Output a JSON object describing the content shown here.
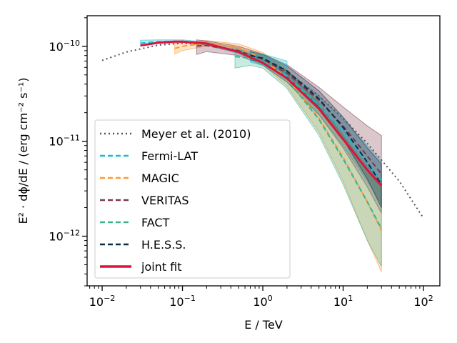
{
  "chart_data": {
    "type": "line",
    "title": "",
    "xlabel": "E / TeV",
    "ylabel": "E² · dϕ/dE / (erg cm⁻² s⁻¹)",
    "xscale": "log",
    "yscale": "log",
    "xlim": [
      0.0065,
      160
    ],
    "ylim": [
      3e-13,
      2.1e-10
    ],
    "x_ticks": [
      {
        "value": 0.01,
        "label": "10",
        "exp": "−2"
      },
      {
        "value": 0.1,
        "label": "10",
        "exp": "−1"
      },
      {
        "value": 1,
        "label": "10",
        "exp": "0"
      },
      {
        "value": 10,
        "label": "10",
        "exp": "1"
      },
      {
        "value": 100,
        "label": "10",
        "exp": "2"
      }
    ],
    "y_ticks": [
      {
        "value": 1e-12,
        "label": "10",
        "exp": "−12"
      },
      {
        "value": 1e-11,
        "label": "10",
        "exp": "−11"
      },
      {
        "value": 1e-10,
        "label": "10",
        "exp": "−10"
      }
    ],
    "grid": false,
    "legend_position": "lower-left",
    "series": [
      {
        "name": "Meyer et al. (2010)",
        "style": "dotted",
        "color": "#555555",
        "x": [
          0.01,
          0.02,
          0.05,
          0.1,
          0.2,
          0.5,
          1,
          2,
          5,
          10,
          20,
          50,
          100
        ],
        "y": [
          7.1e-11,
          8.7e-11,
          1.03e-10,
          1.08e-10,
          1.05e-10,
          9e-11,
          7.3e-11,
          5.4e-11,
          3e-11,
          1.75e-11,
          9.5e-12,
          3.8e-12,
          1.55e-12
        ]
      },
      {
        "name": "Fermi-LAT",
        "style": "dashed",
        "color": "#17becf",
        "x": [
          0.03,
          0.05,
          0.1,
          0.2,
          0.5,
          1,
          2,
          5,
          10,
          20,
          30
        ],
        "y": [
          1.08e-10,
          1.12e-10,
          1.13e-10,
          1.06e-10,
          8.9e-11,
          6.9e-11,
          4.8e-11,
          2.4e-11,
          1.25e-11,
          6e-12,
          3.9e-12
        ]
      },
      {
        "name": "MAGIC",
        "style": "dashed",
        "color": "#ff9933",
        "x": [
          0.08,
          0.1,
          0.2,
          0.5,
          1,
          2,
          5,
          10,
          20,
          30
        ],
        "y": [
          9.5e-11,
          1e-10,
          1.08e-10,
          9.7e-11,
          7.4e-11,
          4.6e-11,
          1.75e-11,
          6.8e-12,
          2.3e-12,
          1.15e-12
        ]
      },
      {
        "name": "VERITAS",
        "style": "dashed",
        "color": "#7a3b4a",
        "x": [
          0.15,
          0.2,
          0.5,
          1,
          2,
          5,
          10,
          20,
          30
        ],
        "y": [
          1.01e-10,
          1.02e-10,
          9e-11,
          7.3e-11,
          5.2e-11,
          2.7e-11,
          1.45e-11,
          7e-12,
          4.5e-12
        ]
      },
      {
        "name": "FACT",
        "style": "dashed",
        "color": "#3cb38f",
        "x": [
          0.45,
          0.7,
          1,
          2,
          5,
          10,
          20,
          30
        ],
        "y": [
          7.8e-11,
          7.5e-11,
          6.9e-11,
          4.5e-11,
          1.7e-11,
          6.5e-12,
          2.3e-12,
          1.2e-12
        ]
      },
      {
        "name": "H.E.S.S.",
        "style": "dashed",
        "color": "#0a2a4a",
        "x": [
          0.7,
          1,
          2,
          5,
          10,
          20,
          30
        ],
        "y": [
          8e-11,
          7.5e-11,
          5.5e-11,
          2.8e-11,
          1.4e-11,
          6e-12,
          3.5e-12
        ]
      },
      {
        "name": "joint fit",
        "style": "solid",
        "color": "#dc143c",
        "x": [
          0.03,
          0.05,
          0.08,
          0.1,
          0.2,
          0.5,
          1,
          2,
          5,
          10,
          20,
          30
        ],
        "y": [
          1.02e-10,
          1.09e-10,
          1.12e-10,
          1.12e-10,
          1.07e-10,
          8.7e-11,
          6.7e-11,
          4.6e-11,
          2.2e-11,
          1.05e-11,
          5e-12,
          3.4e-12
        ]
      }
    ],
    "bands": [
      {
        "series": "Fermi-LAT",
        "color": "#17becf",
        "x": [
          0.03,
          0.05,
          0.1,
          0.2,
          0.5,
          1,
          2,
          5,
          10,
          20,
          30
        ],
        "lower": [
          1e-10,
          1.07e-10,
          1.09e-10,
          1.02e-10,
          8.4e-11,
          6.4e-11,
          4.2e-11,
          1.9e-11,
          9e-12,
          3.8e-12,
          2.2e-12
        ],
        "upper": [
          1.16e-10,
          1.17e-10,
          1.17e-10,
          1.11e-10,
          9.5e-11,
          7.5e-11,
          5.5e-11,
          3e-11,
          1.7e-11,
          9e-12,
          6.2e-12
        ]
      },
      {
        "series": "MAGIC",
        "color": "#ff9933",
        "x": [
          0.08,
          0.1,
          0.2,
          0.5,
          1,
          2,
          5,
          10,
          20,
          30
        ],
        "lower": [
          8.3e-11,
          9e-11,
          1.01e-10,
          8.9e-11,
          6.4e-11,
          3.8e-11,
          1.25e-11,
          3.8e-12,
          9e-13,
          4.2e-13
        ],
        "upper": [
          1.08e-10,
          1.1e-10,
          1.15e-10,
          1.06e-10,
          8.6e-11,
          5.7e-11,
          2.5e-11,
          1.15e-11,
          5e-12,
          3.1e-12
        ]
      },
      {
        "series": "VERITAS",
        "color": "#7a3b4a",
        "x": [
          0.15,
          0.2,
          0.5,
          1,
          2,
          5,
          10,
          20,
          30
        ],
        "lower": [
          8.2e-11,
          8.8e-11,
          8e-11,
          6.3e-11,
          4.2e-11,
          1.9e-11,
          8.5e-12,
          3.3e-12,
          1.75e-12
        ],
        "upper": [
          1.17e-10,
          1.14e-10,
          1e-10,
          8.3e-11,
          6.4e-11,
          3.7e-11,
          2.3e-11,
          1.45e-11,
          1.15e-11
        ]
      },
      {
        "series": "FACT",
        "color": "#3cb38f",
        "x": [
          0.45,
          0.7,
          1,
          2,
          5,
          10,
          20,
          30
        ],
        "lower": [
          5.9e-11,
          6.3e-11,
          5.9e-11,
          3.6e-11,
          1.15e-11,
          3.5e-12,
          9e-13,
          4.8e-13
        ],
        "upper": [
          9.3e-11,
          8.8e-11,
          8e-11,
          5.5e-11,
          2.5e-11,
          1.15e-11,
          5.5e-12,
          3.6e-12
        ]
      },
      {
        "series": "H.E.S.S.",
        "color": "#0a2a4a",
        "x": [
          0.7,
          1,
          2,
          5,
          10,
          20,
          30
        ],
        "lower": [
          7.2e-11,
          6.8e-11,
          4.8e-11,
          2.3e-11,
          1.05e-11,
          4e-12,
          2e-12
        ],
        "upper": [
          8.8e-11,
          8.2e-11,
          6.2e-11,
          3.4e-11,
          1.8e-11,
          8.5e-12,
          5.8e-12
        ]
      },
      {
        "series": "Fermi-LAT",
        "color": "#17becf",
        "x": [
          0.7,
          1,
          1.5,
          2
        ],
        "lower": [
          6.8e-11,
          6.3e-11,
          5.4e-11,
          4.8e-11
        ],
        "upper": [
          8.6e-11,
          8.3e-11,
          7.5e-11,
          7e-11
        ]
      }
    ]
  }
}
